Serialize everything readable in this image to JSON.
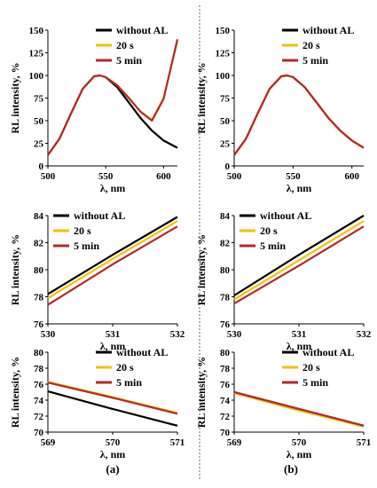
{
  "panel_labels": [
    "(a)",
    "(b)"
  ],
  "legend_labels": [
    "without AL",
    "20 s",
    "5 min"
  ],
  "colors": {
    "without_al": "#000000",
    "s20": "#f2c200",
    "min5": "#b5282a"
  },
  "chart_data": [
    {
      "type": "line",
      "panel": "(a)",
      "xlabel": "λ, nm",
      "ylabel": "RL intensity, %",
      "xlim": [
        500,
        612
      ],
      "ylim": [
        0,
        150
      ],
      "xticks": [
        500,
        550,
        600
      ],
      "yticks": [
        0,
        25,
        50,
        75,
        100,
        125,
        150
      ],
      "legend": "top-right",
      "series": [
        {
          "name": "without AL",
          "x": [
            500,
            510,
            520,
            530,
            540,
            545,
            550,
            560,
            570,
            580,
            590,
            600,
            612
          ],
          "y": [
            12,
            30,
            58,
            85,
            99,
            100,
            98,
            87,
            70,
            53,
            39,
            28,
            20
          ]
        },
        {
          "name": "20 s",
          "x": [
            500,
            510,
            520,
            530,
            540,
            545,
            550,
            560,
            570,
            580,
            590,
            600,
            612
          ],
          "y": [
            12,
            30,
            58,
            85,
            99,
            100,
            98,
            89,
            75,
            60,
            51,
            75,
            138
          ]
        },
        {
          "name": "5 min",
          "x": [
            500,
            510,
            520,
            530,
            540,
            545,
            550,
            560,
            570,
            580,
            590,
            600,
            612
          ],
          "y": [
            12,
            30,
            58,
            85,
            99,
            100,
            98,
            89,
            75,
            60,
            50,
            74,
            140
          ]
        }
      ]
    },
    {
      "type": "line",
      "panel": "(a)",
      "xlabel": "λ, nm",
      "ylabel": "RL intensity, %",
      "xlim": [
        530,
        532
      ],
      "ylim": [
        76,
        84
      ],
      "xticks": [
        530,
        531,
        532
      ],
      "yticks": [
        76,
        78,
        80,
        82,
        84
      ],
      "legend": "top-left",
      "series": [
        {
          "name": "without AL",
          "x": [
            530,
            531,
            532
          ],
          "y": [
            78.2,
            81.1,
            83.9
          ]
        },
        {
          "name": "20 s",
          "x": [
            530,
            531,
            532
          ],
          "y": [
            77.9,
            80.8,
            83.6
          ]
        },
        {
          "name": "5 min",
          "x": [
            530,
            531,
            532
          ],
          "y": [
            77.4,
            80.4,
            83.2
          ]
        }
      ]
    },
    {
      "type": "line",
      "panel": "(a)",
      "xlabel": "λ, nm",
      "ylabel": "RL intensity, %",
      "xlim": [
        569,
        571
      ],
      "ylim": [
        70,
        80
      ],
      "xticks": [
        569,
        570,
        571
      ],
      "yticks": [
        70,
        72,
        74,
        76,
        78,
        80
      ],
      "legend": "top-right",
      "series": [
        {
          "name": "without AL",
          "x": [
            569,
            570,
            571
          ],
          "y": [
            75.1,
            72.9,
            70.8
          ]
        },
        {
          "name": "20 s",
          "x": [
            569,
            570,
            571
          ],
          "y": [
            76.3,
            74.4,
            72.4
          ]
        },
        {
          "name": "5 min",
          "x": [
            569,
            570,
            571
          ],
          "y": [
            76.2,
            74.3,
            72.3
          ]
        }
      ]
    },
    {
      "type": "line",
      "panel": "(b)",
      "xlabel": "λ, nm",
      "ylabel": "RL intensity, %",
      "xlim": [
        500,
        610
      ],
      "ylim": [
        0,
        150
      ],
      "xticks": [
        500,
        550,
        600
      ],
      "yticks": [
        0,
        25,
        50,
        75,
        100,
        125,
        150
      ],
      "legend": "top-right",
      "series": [
        {
          "name": "without AL",
          "x": [
            500,
            510,
            520,
            530,
            540,
            545,
            550,
            560,
            570,
            580,
            590,
            600,
            610
          ],
          "y": [
            12,
            30,
            58,
            85,
            99,
            100,
            98,
            87,
            70,
            53,
            39,
            28,
            20
          ]
        },
        {
          "name": "20 s",
          "x": [
            500,
            510,
            520,
            530,
            540,
            545,
            550,
            560,
            570,
            580,
            590,
            600,
            610
          ],
          "y": [
            12,
            30,
            58,
            85,
            99,
            100,
            98,
            87,
            70,
            53,
            39,
            28,
            20
          ]
        },
        {
          "name": "5 min",
          "x": [
            500,
            510,
            520,
            530,
            540,
            545,
            550,
            560,
            570,
            580,
            590,
            600,
            610
          ],
          "y": [
            12,
            30,
            58,
            85,
            99,
            100,
            98,
            87,
            70,
            53,
            39,
            28,
            20
          ]
        }
      ]
    },
    {
      "type": "line",
      "panel": "(b)",
      "xlabel": "λ, nm",
      "ylabel": "RL intensity, %",
      "xlim": [
        530,
        532
      ],
      "ylim": [
        76,
        84
      ],
      "xticks": [
        530,
        531,
        532
      ],
      "yticks": [
        76,
        78,
        80,
        82,
        84
      ],
      "legend": "top-left",
      "series": [
        {
          "name": "without AL",
          "x": [
            530,
            531,
            532
          ],
          "y": [
            78.1,
            81.1,
            84.0
          ]
        },
        {
          "name": "20 s",
          "x": [
            530,
            531,
            532
          ],
          "y": [
            77.8,
            80.7,
            83.6
          ]
        },
        {
          "name": "5 min",
          "x": [
            530,
            531,
            532
          ],
          "y": [
            77.5,
            80.3,
            83.2
          ]
        }
      ]
    },
    {
      "type": "line",
      "panel": "(b)",
      "xlabel": "λ, nm",
      "ylabel": "RL intensity, %",
      "xlim": [
        569,
        571
      ],
      "ylim": [
        70,
        80
      ],
      "xticks": [
        569,
        570,
        571
      ],
      "yticks": [
        70,
        72,
        74,
        76,
        78,
        80
      ],
      "legend": "top-right",
      "series": [
        {
          "name": "without AL",
          "x": [
            569,
            570,
            571
          ],
          "y": [
            75.0,
            72.9,
            70.8
          ]
        },
        {
          "name": "20 s",
          "x": [
            569,
            570,
            571
          ],
          "y": [
            74.9,
            72.7,
            70.7
          ]
        },
        {
          "name": "5 min",
          "x": [
            569,
            570,
            571
          ],
          "y": [
            75.0,
            72.9,
            70.8
          ]
        }
      ]
    }
  ]
}
